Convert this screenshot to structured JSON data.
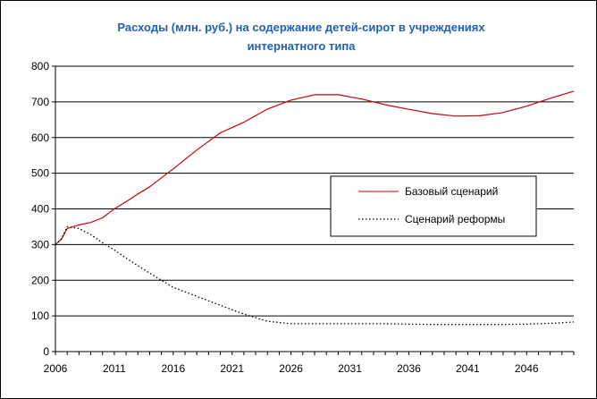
{
  "chart_data": {
    "type": "line",
    "title_line1": "Расходы (млн. руб.) на содержание детей-сирот в  учреждениях",
    "title_line2": "интернатного типа",
    "xlabel": "",
    "ylabel": "",
    "xlim": [
      2006,
      2050
    ],
    "ylim": [
      0,
      800
    ],
    "yticks": [
      0,
      100,
      200,
      300,
      400,
      500,
      600,
      700,
      800
    ],
    "xticks": [
      2006,
      2011,
      2016,
      2021,
      2026,
      2031,
      2036,
      2041,
      2046
    ],
    "grid": "horizontal",
    "legend_position": "center-right",
    "series": [
      {
        "name": "Базовый сценарий",
        "color": "#cc0000",
        "style": "solid",
        "x": [
          2006,
          2006.5,
          2007,
          2008,
          2009,
          2010,
          2011,
          2012,
          2013,
          2014,
          2016,
          2018,
          2020,
          2022,
          2024,
          2026,
          2028,
          2030,
          2032,
          2034,
          2036,
          2038,
          2040,
          2042,
          2044,
          2046,
          2048,
          2050
        ],
        "values": [
          300,
          315,
          345,
          355,
          362,
          375,
          400,
          420,
          442,
          462,
          512,
          565,
          613,
          643,
          680,
          705,
          720,
          720,
          708,
          692,
          679,
          667,
          660,
          661,
          670,
          688,
          710,
          730
        ]
      },
      {
        "name": "Сценарий реформы",
        "color": "#000000",
        "style": "dotted",
        "x": [
          2006,
          2006.5,
          2007,
          2008,
          2009,
          2010,
          2011,
          2012,
          2014,
          2016,
          2018,
          2020,
          2022,
          2024,
          2026,
          2028,
          2030,
          2032,
          2034,
          2036,
          2038,
          2040,
          2042,
          2044,
          2046,
          2048,
          2050
        ],
        "values": [
          300,
          315,
          350,
          345,
          328,
          305,
          285,
          262,
          220,
          180,
          155,
          130,
          105,
          85,
          78,
          78,
          78,
          78,
          78,
          77,
          76,
          76,
          76,
          76,
          77,
          79,
          83
        ]
      }
    ]
  }
}
